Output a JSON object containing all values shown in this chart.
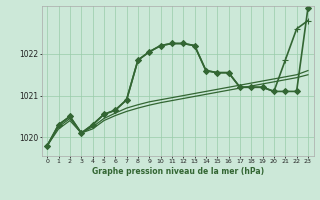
{
  "title": "Graphe pression niveau de la mer (hPa)",
  "background_color": "#cce8d8",
  "grid_color": "#99ccaa",
  "line_color": "#336633",
  "xlim_min": -0.5,
  "xlim_max": 23.5,
  "ylim_min": 1019.55,
  "ylim_max": 1023.15,
  "yticks": [
    1020,
    1021,
    1022
  ],
  "xticks": [
    0,
    1,
    2,
    3,
    4,
    5,
    6,
    7,
    8,
    9,
    10,
    11,
    12,
    13,
    14,
    15,
    16,
    17,
    18,
    19,
    20,
    21,
    22,
    23
  ],
  "series": [
    {
      "data": [
        1019.8,
        1020.3,
        1020.5,
        1020.1,
        1020.3,
        1020.55,
        1020.65,
        1020.9,
        1021.85,
        1022.05,
        1022.2,
        1022.25,
        1022.25,
        1022.2,
        1021.6,
        1021.55,
        1021.55,
        1021.2,
        1021.2,
        1021.2,
        1021.1,
        1021.1,
        1021.1,
        1023.1
      ],
      "marker": "D",
      "markersize": 3,
      "linewidth": 1.2
    },
    {
      "data": [
        1019.8,
        1020.3,
        1020.5,
        1020.1,
        1020.3,
        1020.55,
        1020.65,
        1020.9,
        1021.85,
        1022.05,
        1022.2,
        1022.25,
        1022.25,
        1022.2,
        1021.6,
        1021.55,
        1021.55,
        1021.2,
        1021.2,
        1021.2,
        1021.1,
        1021.85,
        1022.6,
        1022.8
      ],
      "marker": "+",
      "markersize": 4,
      "linewidth": 1.2
    },
    {
      "data": [
        1019.8,
        1020.25,
        1020.45,
        1020.1,
        1020.25,
        1020.45,
        1020.58,
        1020.7,
        1020.78,
        1020.85,
        1020.9,
        1020.95,
        1021.0,
        1021.05,
        1021.1,
        1021.15,
        1021.2,
        1021.25,
        1021.3,
        1021.35,
        1021.4,
        1021.45,
        1021.5,
        1021.6
      ],
      "marker": null,
      "markersize": 0,
      "linewidth": 0.9
    },
    {
      "data": [
        1019.8,
        1020.2,
        1020.4,
        1020.1,
        1020.2,
        1020.4,
        1020.52,
        1020.62,
        1020.7,
        1020.77,
        1020.83,
        1020.88,
        1020.93,
        1020.98,
        1021.03,
        1021.08,
        1021.13,
        1021.18,
        1021.23,
        1021.28,
        1021.33,
        1021.38,
        1021.43,
        1021.5
      ],
      "marker": null,
      "markersize": 0,
      "linewidth": 0.9
    }
  ]
}
